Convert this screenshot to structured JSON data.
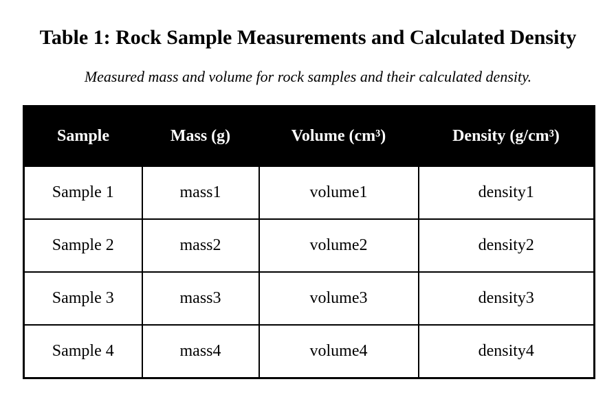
{
  "document": {
    "title": "Table 1: Rock Sample Measurements and Calculated Density",
    "subtitle": "Measured mass and volume for rock samples and their calculated density."
  },
  "table": {
    "headers": [
      "Sample",
      "Mass (g)",
      "Volume (cm³)",
      "Density (g/cm³)"
    ],
    "rows": [
      [
        "Sample 1",
        "mass1",
        "volume1",
        "density1"
      ],
      [
        "Sample 2",
        "mass2",
        "volume2",
        "density2"
      ],
      [
        "Sample 3",
        "mass3",
        "volume3",
        "density3"
      ],
      [
        "Sample 4",
        "mass4",
        "volume4",
        "density4"
      ]
    ]
  },
  "colors": {
    "header_background": "#000000",
    "header_text": "#ffffff",
    "border": "#000000"
  }
}
